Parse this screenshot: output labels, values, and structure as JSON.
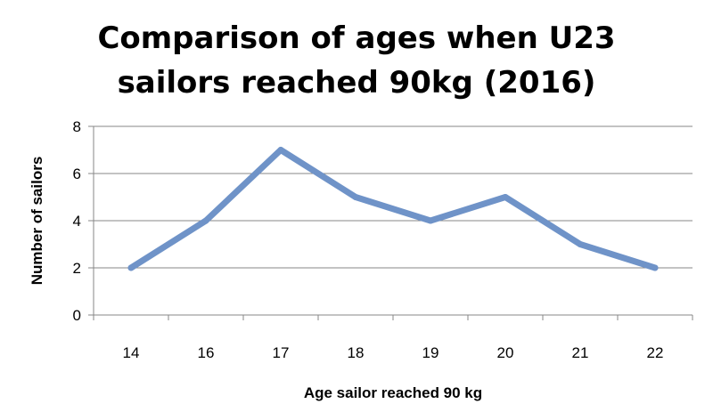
{
  "chart_data": {
    "type": "line",
    "title_lines": [
      "Comparison of ages when U23",
      "sailors reached 90kg (2016)"
    ],
    "xlabel": "Age sailor reached 90 kg",
    "ylabel": "Number of sailors",
    "categories": [
      "14",
      "16",
      "17",
      "18",
      "19",
      "20",
      "21",
      "22"
    ],
    "series": [
      {
        "values": [
          2,
          4,
          7,
          5,
          4,
          5,
          3,
          2
        ],
        "color": "#6f93c8"
      }
    ],
    "ylim": [
      0,
      8
    ],
    "yticks": [
      "0",
      "2",
      "4",
      "6",
      "8"
    ],
    "grid": true,
    "legend": "none"
  },
  "colors": {
    "line": "#6f93c8",
    "grid": "#878787",
    "axis": "#878787",
    "text": "#000000"
  }
}
